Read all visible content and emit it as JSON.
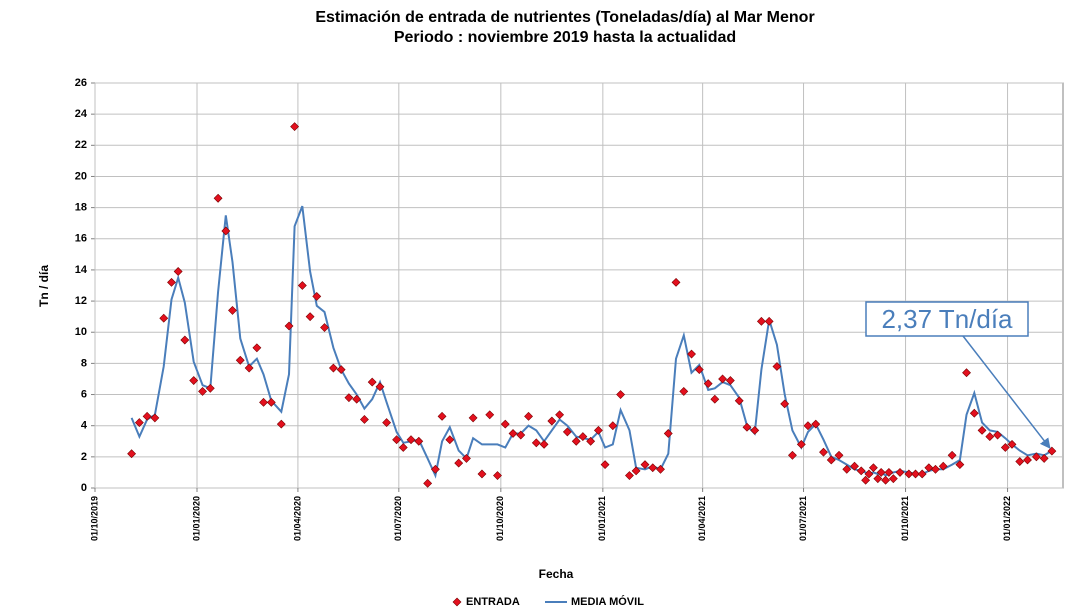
{
  "chart_data": {
    "type": "scatter",
    "title": "Estimación de entrada de nutrientes (Toneladas/día) al  Mar Menor",
    "subtitle": "Periodo : noviembre 2019 hasta la actualidad",
    "xlabel": "Fecha",
    "ylabel": "Tn  / día",
    "annotation": "2,37 Tn/día",
    "grid": true,
    "legend": "bottom",
    "xlim": [
      "2019-10-01",
      "2022-02-20"
    ],
    "xticks": [
      {
        "value": "2019-10-01",
        "label": "01/10/2019"
      },
      {
        "value": "2020-01-01",
        "label": "01/01/2020"
      },
      {
        "value": "2020-04-01",
        "label": "01/04/2020"
      },
      {
        "value": "2020-07-01",
        "label": "01/07/2020"
      },
      {
        "value": "2020-10-01",
        "label": "01/10/2020"
      },
      {
        "value": "2021-01-01",
        "label": "01/01/2021"
      },
      {
        "value": "2021-04-01",
        "label": "01/04/2021"
      },
      {
        "value": "2021-07-01",
        "label": "01/07/2021"
      },
      {
        "value": "2021-10-01",
        "label": "01/10/2021"
      },
      {
        "value": "2022-01-01",
        "label": "01/01/2022"
      }
    ],
    "ylim": [
      0,
      26
    ],
    "yticks": [
      0,
      2,
      4,
      6,
      8,
      10,
      12,
      14,
      16,
      18,
      20,
      22,
      24,
      26
    ],
    "x": [
      "2019-11-03",
      "2019-11-10",
      "2019-11-17",
      "2019-11-24",
      "2019-12-02",
      "2019-12-09",
      "2019-12-15",
      "2019-12-21",
      "2019-12-29",
      "2020-01-06",
      "2020-01-13",
      "2020-01-20",
      "2020-01-27",
      "2020-02-02",
      "2020-02-09",
      "2020-02-17",
      "2020-02-24",
      "2020-03-01",
      "2020-03-08",
      "2020-03-17",
      "2020-03-24",
      "2020-03-29",
      "2020-04-05",
      "2020-04-12",
      "2020-04-18",
      "2020-04-25",
      "2020-05-03",
      "2020-05-10",
      "2020-05-17",
      "2020-05-24",
      "2020-05-31",
      "2020-06-07",
      "2020-06-14",
      "2020-06-20",
      "2020-06-29",
      "2020-07-05",
      "2020-07-12",
      "2020-07-19",
      "2020-07-27",
      "2020-08-03",
      "2020-08-09",
      "2020-08-16",
      "2020-08-24",
      "2020-08-31",
      "2020-09-06",
      "2020-09-14",
      "2020-09-21",
      "2020-09-28",
      "2020-10-05",
      "2020-10-12",
      "2020-10-19",
      "2020-10-26",
      "2020-11-02",
      "2020-11-09",
      "2020-11-16",
      "2020-11-23",
      "2020-11-30",
      "2020-12-08",
      "2020-12-14",
      "2020-12-21",
      "2020-12-28",
      "2021-01-03",
      "2021-01-10",
      "2021-01-17",
      "2021-01-25",
      "2021-01-31",
      "2021-02-08",
      "2021-02-15",
      "2021-02-22",
      "2021-03-01",
      "2021-03-08",
      "2021-03-15",
      "2021-03-22",
      "2021-03-29",
      "2021-04-06",
      "2021-04-12",
      "2021-04-19",
      "2021-04-26",
      "2021-05-04",
      "2021-05-11",
      "2021-05-18",
      "2021-05-24",
      "2021-05-31",
      "2021-06-07",
      "2021-06-14",
      "2021-06-21",
      "2021-06-29",
      "2021-07-05",
      "2021-07-12",
      "2021-07-19",
      "2021-07-26",
      "2021-08-02",
      "2021-08-09",
      "2021-08-16",
      "2021-08-22",
      "2021-08-26",
      "2021-08-29",
      "2021-09-02",
      "2021-09-06",
      "2021-09-09",
      "2021-09-13",
      "2021-09-16",
      "2021-09-20",
      "2021-09-26",
      "2021-10-04",
      "2021-10-10",
      "2021-10-16",
      "2021-10-22",
      "2021-10-28",
      "2021-11-04",
      "2021-11-12",
      "2021-11-19",
      "2021-11-25",
      "2021-12-02",
      "2021-12-09",
      "2021-12-16",
      "2021-12-23",
      "2021-12-30",
      "2022-01-05",
      "2022-01-12",
      "2022-01-19",
      "2022-01-27",
      "2022-02-03",
      "2022-02-10"
    ],
    "series": [
      {
        "name": "ENTRADA",
        "type": "scatter",
        "color": "#e3101e",
        "values": [
          2.2,
          4.2,
          4.6,
          4.5,
          10.9,
          13.2,
          13.9,
          9.5,
          6.9,
          6.2,
          6.4,
          18.6,
          16.5,
          11.4,
          8.2,
          7.7,
          9.0,
          5.5,
          5.5,
          4.1,
          10.4,
          23.2,
          13.0,
          11.0,
          12.3,
          10.3,
          7.7,
          7.6,
          5.8,
          5.7,
          4.4,
          6.8,
          6.5,
          4.2,
          3.1,
          2.6,
          3.1,
          3.0,
          0.3,
          1.2,
          4.6,
          3.1,
          1.6,
          1.9,
          4.5,
          0.9,
          4.7,
          0.8,
          4.1,
          3.5,
          3.4,
          4.6,
          2.9,
          2.8,
          4.3,
          4.7,
          3.6,
          3.0,
          3.3,
          3.0,
          3.7,
          1.5,
          4.0,
          6.0,
          0.8,
          1.1,
          1.5,
          1.3,
          1.2,
          3.5,
          13.2,
          6.2,
          8.6,
          7.6,
          6.7,
          5.7,
          7.0,
          6.9,
          5.6,
          3.9,
          3.7,
          10.7,
          10.7,
          7.8,
          5.4,
          2.1,
          2.8,
          4.0,
          4.1,
          2.3,
          1.8,
          2.1,
          1.2,
          1.4,
          1.1,
          0.5,
          0.9,
          1.3,
          0.6,
          1.0,
          0.5,
          1.0,
          0.6,
          1.0,
          0.9,
          0.9,
          0.9,
          1.3,
          1.2,
          1.4,
          2.1,
          1.5,
          7.4,
          4.8,
          3.7,
          3.3,
          3.4,
          2.6,
          2.8,
          1.7,
          1.8,
          2.0,
          1.9,
          2.37
        ]
      },
      {
        "name": "MEDIA MÓVIL",
        "type": "line",
        "color": "#4a7ebb",
        "values": [
          4.5,
          3.3,
          4.4,
          4.7,
          7.8,
          12.1,
          13.5,
          11.9,
          8.1,
          6.6,
          6.4,
          12.6,
          17.5,
          14.5,
          9.6,
          7.8,
          8.3,
          7.3,
          5.6,
          4.9,
          7.3,
          16.8,
          18.1,
          13.9,
          11.7,
          11.3,
          9.0,
          7.6,
          6.7,
          6.0,
          5.1,
          5.7,
          6.8,
          5.5,
          3.6,
          2.9,
          3.0,
          3.1,
          1.9,
          0.8,
          3.0,
          3.9,
          2.4,
          1.9,
          3.2,
          2.8,
          2.8,
          2.8,
          2.6,
          3.5,
          3.5,
          4.0,
          3.7,
          3.0,
          3.7,
          4.4,
          4.0,
          3.3,
          3.2,
          3.1,
          3.6,
          2.6,
          2.8,
          5.0,
          3.7,
          1.3,
          1.2,
          1.4,
          1.2,
          2.2,
          8.3,
          9.8,
          7.4,
          7.9,
          6.3,
          6.4,
          6.8,
          6.6,
          5.8,
          4.0,
          3.5,
          7.6,
          10.8,
          9.2,
          6.0,
          3.7,
          2.6,
          3.6,
          4.1,
          3.1,
          2.0,
          1.8,
          1.5,
          1.2,
          1.1,
          1.0,
          0.9,
          1.0,
          0.9,
          1.0,
          0.8,
          0.9,
          1.0,
          1.1,
          1.0,
          0.9,
          0.9,
          1.1,
          1.2,
          1.2,
          1.5,
          1.8,
          4.7,
          6.1,
          4.2,
          3.7,
          3.6,
          3.2,
          2.8,
          2.4,
          2.1,
          2.2,
          2.1,
          2.4
        ]
      }
    ]
  }
}
